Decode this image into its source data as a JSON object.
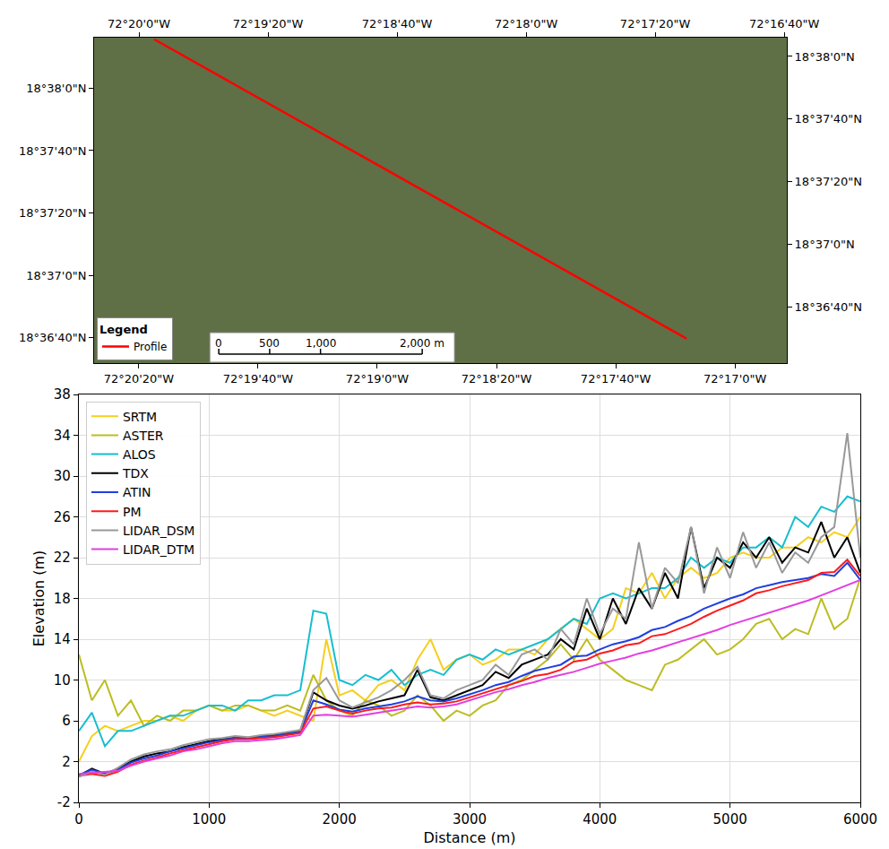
{
  "chart_data": [
    {
      "type": "line",
      "legend_title": "Legend",
      "legend": "lower left",
      "grid": false,
      "series": [
        {
          "name": "Profile",
          "color": "#ff0000",
          "x": [
            -72.33747,
            -72.28783
          ],
          "values": [
            18.63769,
            18.61103
          ]
        }
      ],
      "xlim": [
        -72.34306,
        -72.2785
      ],
      "xticks": [
        {
          "value": -72.33889,
          "label": "72°20'20\"W"
        },
        {
          "value": -72.32778,
          "label": "72°19'40\"W"
        },
        {
          "value": -72.31667,
          "label": "72°19'0\"W"
        },
        {
          "value": -72.30556,
          "label": "72°18'20\"W"
        },
        {
          "value": -72.29444,
          "label": "72°17'40\"W"
        },
        {
          "value": -72.28333,
          "label": "72°17'0\"W"
        }
      ],
      "x2lim": [
        -72.33719,
        -72.27756
      ],
      "x2ticks": [
        {
          "value": -72.33333,
          "label": "72°20'0\"W"
        },
        {
          "value": -72.32222,
          "label": "72°19'20\"W"
        },
        {
          "value": -72.31111,
          "label": "72°18'40\"W"
        },
        {
          "value": -72.3,
          "label": "72°18'0\"W"
        },
        {
          "value": -72.28889,
          "label": "72°17'20\"W"
        },
        {
          "value": -72.27778,
          "label": "72°16'40\"W"
        }
      ],
      "ylim": [
        18.60886,
        18.63783
      ],
      "yticks": [
        {
          "value": 18.633333,
          "label": "18°38'0\"N"
        },
        {
          "value": 18.627778,
          "label": "18°37'40\"N"
        },
        {
          "value": 18.622222,
          "label": "18°37'20\"N"
        },
        {
          "value": 18.616667,
          "label": "18°37'0\"N"
        },
        {
          "value": 18.611111,
          "label": "18°36'40\"N"
        }
      ],
      "y2lim": [
        18.60611,
        18.635
      ],
      "y2ticks": [
        {
          "value": 18.633333,
          "label": "18°38'0\"N"
        },
        {
          "value": 18.627778,
          "label": "18°37'40\"N"
        },
        {
          "value": 18.622222,
          "label": "18°37'20\"N"
        },
        {
          "value": 18.616667,
          "label": "18°37'0\"N"
        },
        {
          "value": 18.611111,
          "label": "18°36'40\"N"
        }
      ],
      "scale_bar": {
        "ticks": [
          {
            "value": 0,
            "label": "0"
          },
          {
            "value": 500,
            "label": "500"
          },
          {
            "value": 1000,
            "label": "1,000"
          },
          {
            "value": 2000,
            "label": "2,000 m"
          }
        ]
      }
    },
    {
      "type": "line",
      "x_label": "Distance (m)",
      "y_label": "Elevation (m)",
      "grid": true,
      "legend": "upper left",
      "xlim": [
        0,
        6000
      ],
      "xticks": [
        0,
        1000,
        2000,
        3000,
        4000,
        5000,
        6000
      ],
      "ylim": [
        -2,
        38
      ],
      "yticks": [
        -2,
        2,
        6,
        10,
        14,
        18,
        22,
        26,
        30,
        34,
        38
      ],
      "x": [
        0,
        100,
        200,
        300,
        400,
        500,
        600,
        700,
        800,
        900,
        1000,
        1100,
        1200,
        1300,
        1400,
        1500,
        1600,
        1700,
        1800,
        1900,
        2000,
        2100,
        2200,
        2300,
        2400,
        2500,
        2600,
        2700,
        2800,
        2900,
        3000,
        3100,
        3200,
        3300,
        3400,
        3500,
        3600,
        3700,
        3800,
        3900,
        4000,
        4100,
        4200,
        4300,
        4400,
        4500,
        4600,
        4700,
        4800,
        4900,
        5000,
        5100,
        5200,
        5300,
        5400,
        5500,
        5600,
        5700,
        5800,
        5900,
        6000
      ],
      "series": [
        {
          "name": "SRTM",
          "color": "#f5cf1f",
          "values": [
            2.0,
            4.5,
            5.5,
            5.0,
            5.5,
            6.0,
            6.0,
            6.5,
            6.0,
            7.0,
            7.5,
            7.0,
            7.0,
            7.5,
            7.0,
            6.5,
            7.0,
            6.5,
            6.0,
            14.0,
            8.5,
            9.0,
            8.0,
            9.5,
            10.0,
            9.0,
            12.0,
            14.0,
            11.0,
            12.0,
            12.5,
            11.5,
            12.0,
            13.0,
            13.0,
            12.5,
            14.0,
            15.0,
            16.0,
            15.0,
            14.0,
            15.0,
            19.0,
            18.5,
            20.5,
            18.0,
            20.0,
            21.0,
            20.0,
            20.5,
            22.0,
            22.5,
            22.0,
            22.0,
            23.0,
            23.0,
            24.0,
            23.5,
            24.5,
            24.0,
            26.0
          ]
        },
        {
          "name": "ASTER",
          "color": "#bcbd22",
          "values": [
            12.5,
            8.0,
            10.0,
            6.5,
            8.0,
            5.5,
            6.5,
            6.0,
            7.0,
            7.0,
            7.5,
            7.0,
            7.5,
            7.5,
            7.0,
            7.0,
            7.5,
            7.0,
            10.5,
            8.0,
            7.0,
            6.5,
            8.0,
            7.5,
            6.5,
            7.0,
            8.5,
            7.5,
            6.0,
            7.0,
            6.5,
            7.5,
            8.0,
            9.5,
            10.0,
            11.0,
            12.0,
            13.5,
            12.0,
            14.0,
            12.0,
            11.0,
            10.0,
            9.5,
            9.0,
            11.5,
            12.0,
            13.0,
            14.0,
            12.5,
            13.0,
            14.0,
            15.5,
            16.0,
            14.0,
            15.0,
            14.5,
            18.0,
            15.0,
            16.0,
            20.0
          ]
        },
        {
          "name": "ALOS",
          "color": "#17becf",
          "values": [
            5.0,
            6.8,
            3.5,
            5.0,
            5.0,
            5.5,
            6.0,
            6.5,
            6.5,
            7.0,
            7.5,
            7.5,
            7.0,
            8.0,
            8.0,
            8.5,
            8.5,
            9.0,
            16.8,
            16.5,
            10.0,
            9.5,
            10.5,
            10.0,
            11.0,
            9.5,
            10.5,
            11.0,
            10.5,
            12.0,
            12.5,
            12.0,
            13.0,
            12.5,
            13.0,
            13.5,
            14.0,
            15.0,
            16.0,
            15.5,
            18.0,
            18.5,
            18.0,
            18.5,
            19.0,
            19.0,
            20.0,
            22.0,
            21.0,
            22.0,
            21.5,
            23.0,
            23.0,
            24.0,
            23.0,
            26.0,
            25.0,
            27.0,
            26.5,
            28.0,
            27.5
          ]
        },
        {
          "name": "TDX",
          "color": "#000000",
          "values": [
            0.6,
            1.3,
            0.8,
            1.3,
            2.0,
            2.5,
            2.8,
            3.0,
            3.4,
            3.7,
            4.0,
            4.2,
            4.4,
            4.3,
            4.5,
            4.6,
            4.8,
            5.0,
            8.8,
            8.0,
            7.5,
            7.2,
            7.5,
            7.9,
            8.2,
            8.5,
            11.0,
            8.3,
            8.0,
            8.5,
            9.0,
            9.5,
            10.8,
            10.2,
            11.5,
            12.0,
            12.5,
            14.0,
            13.0,
            17.0,
            14.0,
            18.0,
            15.5,
            19.0,
            17.0,
            20.5,
            18.0,
            25.0,
            19.0,
            22.0,
            21.0,
            23.5,
            22.0,
            24.0,
            21.5,
            23.0,
            22.5,
            25.5,
            22.0,
            24.0,
            20.5
          ]
        },
        {
          "name": "ATIN",
          "color": "#1f3fe0",
          "values": [
            0.7,
            1.2,
            0.8,
            1.2,
            1.9,
            2.3,
            2.6,
            3.0,
            3.3,
            3.6,
            3.9,
            4.1,
            4.3,
            4.3,
            4.4,
            4.5,
            4.7,
            4.9,
            8.0,
            7.6,
            7.1,
            6.9,
            7.2,
            7.4,
            7.6,
            7.9,
            8.4,
            8.0,
            7.9,
            8.2,
            8.6,
            9.0,
            9.5,
            9.8,
            10.4,
            10.9,
            11.2,
            11.5,
            12.3,
            12.4,
            13.0,
            13.5,
            13.8,
            14.2,
            14.9,
            15.2,
            15.8,
            16.3,
            17.0,
            17.5,
            18.0,
            18.4,
            19.0,
            19.3,
            19.6,
            19.8,
            20.0,
            20.4,
            20.2,
            21.5,
            19.8
          ]
        },
        {
          "name": "PM",
          "color": "#ff1a1a",
          "values": [
            0.6,
            0.8,
            0.6,
            1.0,
            1.7,
            2.1,
            2.4,
            2.8,
            3.1,
            3.4,
            3.7,
            4.0,
            4.2,
            4.2,
            4.3,
            4.4,
            4.6,
            4.8,
            7.2,
            7.4,
            7.0,
            6.7,
            7.0,
            7.2,
            7.3,
            7.6,
            7.8,
            7.6,
            7.7,
            7.9,
            8.3,
            8.7,
            9.1,
            9.5,
            9.9,
            10.4,
            10.6,
            11.0,
            11.8,
            12.0,
            12.6,
            12.9,
            13.4,
            13.6,
            14.3,
            14.5,
            15.0,
            15.5,
            16.2,
            16.8,
            17.3,
            17.8,
            18.5,
            18.8,
            19.2,
            19.5,
            19.8,
            20.5,
            20.6,
            21.8,
            20.2
          ]
        },
        {
          "name": "LIDAR_DSM",
          "color": "#999999",
          "values": [
            0.5,
            1.0,
            0.7,
            1.4,
            2.2,
            2.7,
            3.0,
            3.2,
            3.6,
            3.9,
            4.2,
            4.3,
            4.5,
            4.4,
            4.6,
            4.7,
            4.9,
            5.1,
            9.0,
            10.2,
            8.0,
            7.3,
            7.8,
            8.3,
            9.0,
            10.0,
            11.3,
            8.5,
            8.2,
            9.0,
            9.5,
            10.0,
            11.5,
            10.5,
            12.5,
            13.0,
            12.0,
            15.0,
            13.5,
            18.0,
            14.5,
            17.0,
            16.0,
            23.5,
            17.0,
            21.0,
            19.5,
            25.0,
            18.5,
            23.0,
            20.0,
            24.5,
            21.0,
            23.5,
            20.5,
            22.5,
            21.5,
            24.0,
            25.0,
            34.2,
            22.0
          ]
        },
        {
          "name": "LIDAR_DTM",
          "color": "#e23fe2",
          "values": [
            0.8,
            0.9,
            1.0,
            1.1,
            1.6,
            2.0,
            2.3,
            2.6,
            3.0,
            3.2,
            3.5,
            3.8,
            4.0,
            4.0,
            4.1,
            4.2,
            4.4,
            4.6,
            6.5,
            6.6,
            6.5,
            6.4,
            6.6,
            6.8,
            7.0,
            7.2,
            7.4,
            7.3,
            7.4,
            7.6,
            8.0,
            8.4,
            8.8,
            9.1,
            9.5,
            9.8,
            10.2,
            10.5,
            10.8,
            11.2,
            11.6,
            11.9,
            12.2,
            12.6,
            12.9,
            13.3,
            13.7,
            14.1,
            14.5,
            14.9,
            15.4,
            15.8,
            16.2,
            16.6,
            17.0,
            17.4,
            17.8,
            18.3,
            18.8,
            19.3,
            19.8
          ]
        }
      ]
    }
  ]
}
